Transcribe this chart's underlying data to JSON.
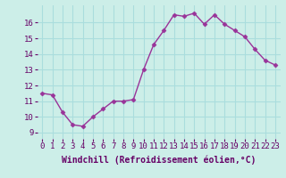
{
  "x": [
    0,
    1,
    2,
    3,
    4,
    5,
    6,
    7,
    8,
    9,
    10,
    11,
    12,
    13,
    14,
    15,
    16,
    17,
    18,
    19,
    20,
    21,
    22,
    23
  ],
  "y": [
    11.5,
    11.4,
    10.3,
    9.5,
    9.4,
    10.0,
    10.5,
    11.0,
    11.0,
    11.1,
    13.0,
    14.6,
    15.5,
    16.5,
    16.4,
    16.6,
    15.9,
    16.5,
    15.9,
    15.5,
    15.1,
    14.3,
    13.6,
    13.3
  ],
  "line_color": "#993399",
  "marker": "D",
  "marker_size": 2.5,
  "bg_color": "#cceee8",
  "grid_color": "#aadddd",
  "xlabel": "Windchill (Refroidissement éolien,°C)",
  "xlabel_fontsize": 7,
  "xtick_labels": [
    "0",
    "1",
    "2",
    "3",
    "4",
    "5",
    "6",
    "7",
    "8",
    "9",
    "10",
    "11",
    "12",
    "13",
    "14",
    "15",
    "16",
    "17",
    "18",
    "19",
    "20",
    "21",
    "22",
    "23"
  ],
  "ytick_values": [
    9,
    10,
    11,
    12,
    13,
    14,
    15,
    16
  ],
  "ylim": [
    8.6,
    17.1
  ],
  "xlim": [
    -0.5,
    23.5
  ],
  "tick_fontsize": 6.5,
  "tick_color": "#660066",
  "label_color": "#660066",
  "line_width": 1.0
}
